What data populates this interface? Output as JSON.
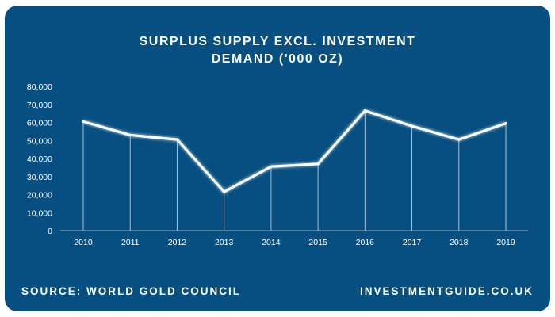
{
  "chart_data": {
    "type": "line",
    "title_line1": "SURPLUS SUPPLY EXCL. INVESTMENT",
    "title_line2": "DEMAND ('000 OZ)",
    "categories": [
      "2010",
      "2011",
      "2012",
      "2013",
      "2014",
      "2015",
      "2016",
      "2017",
      "2018",
      "2019"
    ],
    "values": [
      60500,
      53000,
      50500,
      21500,
      35500,
      37000,
      66500,
      58000,
      50500,
      59500
    ],
    "ylim": [
      0,
      80000
    ],
    "yticks": [
      0,
      10000,
      20000,
      30000,
      40000,
      50000,
      60000,
      70000,
      80000
    ],
    "ytick_labels": [
      "0",
      "10,000",
      "20,000",
      "30,000",
      "40,000",
      "50,000",
      "60,000",
      "70,000",
      "80,000"
    ],
    "grid": false,
    "drop_lines": true
  },
  "footer": {
    "source": "SOURCE: WORLD GOLD COUNCIL",
    "site": "INVESTMENTGUIDE.CO.UK"
  },
  "colors": {
    "background": "#064f80",
    "line": "#ffffff",
    "text": "#ffffff"
  }
}
